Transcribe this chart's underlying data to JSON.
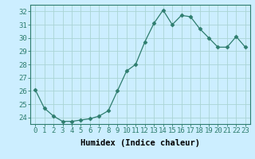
{
  "x": [
    0,
    1,
    2,
    3,
    4,
    5,
    6,
    7,
    8,
    9,
    10,
    11,
    12,
    13,
    14,
    15,
    16,
    17,
    18,
    19,
    20,
    21,
    22,
    23
  ],
  "y": [
    26.1,
    24.7,
    24.1,
    23.7,
    23.7,
    23.8,
    23.9,
    24.1,
    24.5,
    26.0,
    27.5,
    28.0,
    29.7,
    31.1,
    32.1,
    31.0,
    31.7,
    31.6,
    30.7,
    30.0,
    29.3,
    29.3,
    30.1,
    29.3
  ],
  "line_color": "#2e7d6e",
  "marker": "D",
  "marker_size": 2.5,
  "bg_color": "#cceeff",
  "grid_color": "#aad4d4",
  "xlabel": "Humidex (Indice chaleur)",
  "ylim": [
    23.5,
    32.5
  ],
  "yticks": [
    24,
    25,
    26,
    27,
    28,
    29,
    30,
    31,
    32
  ],
  "xtick_labels": [
    "0",
    "1",
    "2",
    "3",
    "4",
    "5",
    "6",
    "7",
    "8",
    "9",
    "10",
    "11",
    "12",
    "13",
    "14",
    "15",
    "16",
    "17",
    "18",
    "19",
    "20",
    "21",
    "22",
    "23"
  ],
  "xlabel_fontsize": 7.5,
  "tick_fontsize": 6.5
}
